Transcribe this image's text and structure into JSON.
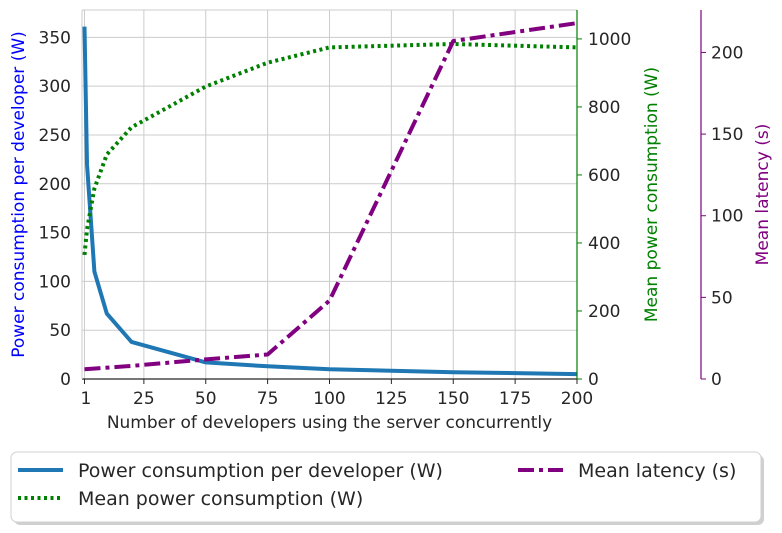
{
  "chart_data": {
    "type": "line",
    "title": "",
    "xlabel": "Number of developers using the server concurrently",
    "x_ticks": [
      1,
      25,
      50,
      75,
      100,
      125,
      150,
      175,
      200
    ],
    "xlim": [
      0,
      200
    ],
    "grid": true,
    "legend_position": "bottom-center",
    "axes": {
      "left": {
        "label": "Power consumption per developer (W)",
        "color": "#0000ff",
        "ylim": [
          0,
          378
        ],
        "ticks": [
          0,
          50,
          100,
          150,
          200,
          250,
          300,
          350
        ]
      },
      "right": {
        "label": "Mean power consumption (W)",
        "color": "#008000",
        "ylim": [
          0,
          1085
        ],
        "ticks": [
          0,
          200,
          400,
          600,
          800,
          1000
        ]
      },
      "right_outer": {
        "label": "Mean latency (s)",
        "color": "#800080",
        "ylim": [
          0,
          226
        ],
        "ticks": [
          0,
          50,
          100,
          150,
          200
        ]
      }
    },
    "series": [
      {
        "name": "Power consumption per developer (W)",
        "axis": "left",
        "color": "#1f77b4",
        "style": "solid",
        "x": [
          1,
          2,
          5,
          10,
          20,
          50,
          75,
          100,
          150,
          200
        ],
        "y": [
          361,
          220,
          110,
          67,
          38,
          17,
          13,
          10,
          7,
          5
        ]
      },
      {
        "name": "Mean power consumption (W)",
        "axis": "right",
        "color": "#008000",
        "style": "dotted",
        "x": [
          1,
          2,
          5,
          10,
          20,
          50,
          75,
          100,
          150,
          200
        ],
        "y": [
          365,
          440,
          560,
          660,
          740,
          860,
          930,
          975,
          985,
          975
        ]
      },
      {
        "name": "Mean latency (s)",
        "axis": "right_outer",
        "color": "#800080",
        "style": "dashdot",
        "x": [
          1,
          20,
          50,
          75,
          100,
          150,
          200
        ],
        "y": [
          6,
          8,
          12,
          15,
          48,
          207,
          218
        ]
      }
    ]
  }
}
